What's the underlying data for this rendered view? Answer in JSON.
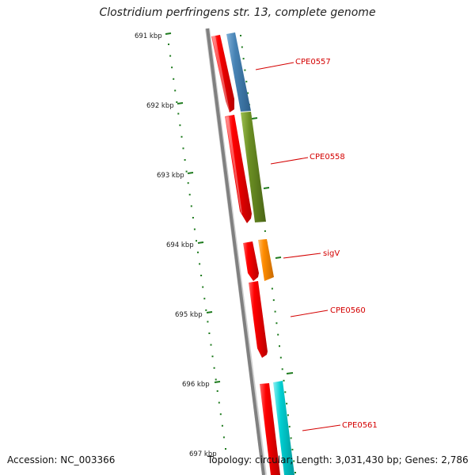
{
  "title": "Clostridium perfringens str. 13, complete genome",
  "footer": {
    "accession": "Accession: NC_003366",
    "topology": "Topology: circular; Length: 3,031,430 bp; Genes: 2,786"
  },
  "ticks": [
    {
      "label": "691 kbp"
    },
    {
      "label": "692 kbp"
    },
    {
      "label": "693 kbp"
    },
    {
      "label": "694 kbp"
    },
    {
      "label": "695 kbp"
    },
    {
      "label": "696 kbp"
    },
    {
      "label": "697 kbp"
    }
  ],
  "genes": [
    {
      "name": "CPE0557",
      "color": "#4682b4"
    },
    {
      "name": "CPE0558",
      "color": "#6b8e23"
    },
    {
      "name": "sigV",
      "color": "#ff8c00"
    },
    {
      "name": "CPE0560"
    },
    {
      "name": "CPE0561",
      "color": "#00ced1"
    }
  ],
  "colors": {
    "cds_strand": "#ff0000",
    "tick_marks": "#1e7b1e",
    "backbone": "#808080",
    "label_text": "#d40000"
  }
}
